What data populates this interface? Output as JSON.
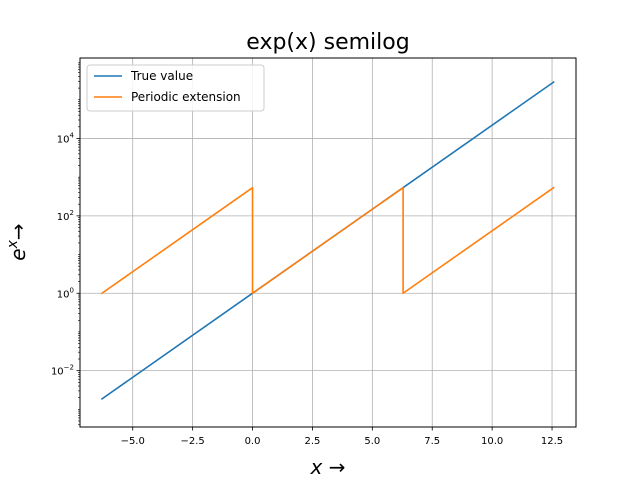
{
  "chart_data": {
    "type": "line",
    "title": "exp(x) semilog",
    "xlabel": "x →",
    "ylabel": "e^x →",
    "ylabel_base": "e",
    "ylabel_exp": "x",
    "ylabel_arrow": "→",
    "xscale": "linear",
    "yscale": "log",
    "xlim": [
      -7.2,
      13.5
    ],
    "ylim": [
      0.00035,
      1200000
    ],
    "grid": true,
    "legend_position": "upper-left",
    "x_ticks": [
      -5.0,
      -2.5,
      0.0,
      2.5,
      5.0,
      7.5,
      10.0,
      12.5
    ],
    "x_tick_labels": [
      "−5.0",
      "−2.5",
      "0.0",
      "2.5",
      "5.0",
      "7.5",
      "10.0",
      "12.5"
    ],
    "y_ticks": [
      {
        "value": 0.01,
        "base": "10",
        "exp": "−2"
      },
      {
        "value": 1,
        "base": "10",
        "exp": "0"
      },
      {
        "value": 100,
        "base": "10",
        "exp": "2"
      },
      {
        "value": 10000,
        "base": "10",
        "exp": "4"
      }
    ],
    "series": [
      {
        "name": "True value",
        "color": "#1f77b4",
        "x": [
          -6.2832,
          12.5664
        ],
        "y": [
          0.001867,
          286751.3
        ]
      },
      {
        "name": "Periodic extension",
        "color": "#ff7f0e",
        "x": [
          -6.2832,
          0.0,
          0.0,
          6.2832,
          6.2832,
          12.5664
        ],
        "y": [
          1.0,
          535.49,
          1.0,
          535.49,
          1.0,
          535.49
        ]
      }
    ]
  }
}
